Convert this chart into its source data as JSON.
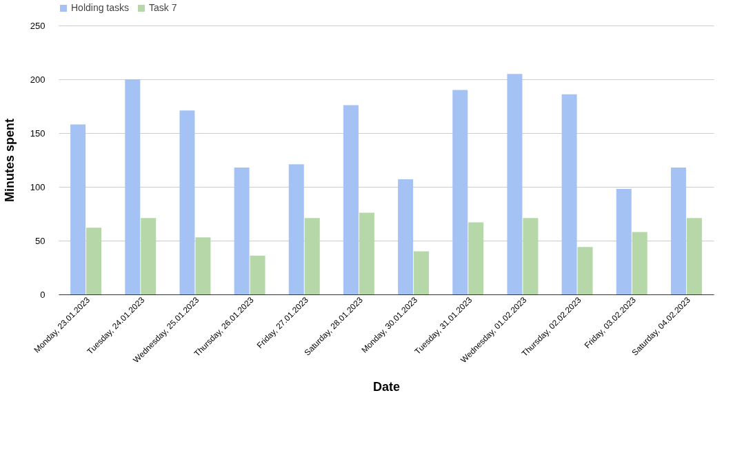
{
  "chart_data": {
    "type": "bar",
    "xlabel": "Date",
    "ylabel": "Minutes spent",
    "categories": [
      "Monday, 23.01.2023",
      "Tuesday, 24.01.2023",
      "Wednesday, 25.01.2023",
      "Thursday, 26.01.2023",
      "Friday, 27.01.2023",
      "Saturday, 28.01.2023",
      "Monday, 30.01.2023",
      "Tuesday, 31.01.2023",
      "Wednesday, 01.02.2023",
      "Thursday, 02.02.2023",
      "Friday, 03.02.2023",
      "Saturday, 04.02.2023"
    ],
    "series": [
      {
        "name": "Holding tasks",
        "color": "#a4c2f4",
        "values": [
          158,
          200,
          171,
          118,
          121,
          176,
          107,
          190,
          205,
          186,
          98,
          118
        ]
      },
      {
        "name": "Task 7",
        "color": "#b6d7a8",
        "values": [
          62,
          71,
          53,
          36,
          71,
          76,
          40,
          67,
          71,
          44,
          58,
          71
        ]
      }
    ],
    "ylim": [
      0,
      250
    ],
    "yticks": [
      0,
      50,
      100,
      150,
      200,
      250
    ],
    "grid": "y",
    "legend": "top"
  }
}
